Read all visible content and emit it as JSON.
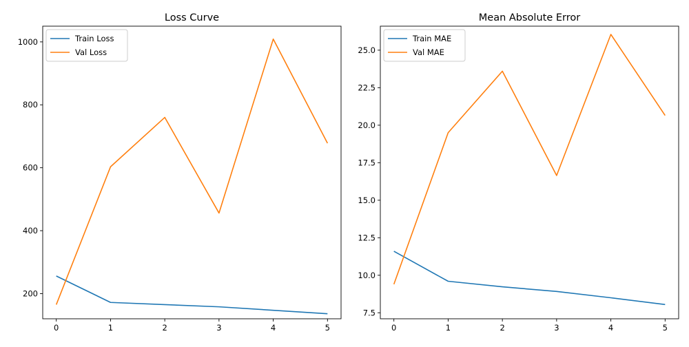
{
  "chart_data": [
    {
      "type": "line",
      "title": "Loss Curve",
      "xlabel": "",
      "ylabel": "",
      "x": [
        0,
        1,
        2,
        3,
        4,
        5
      ],
      "xlim": [
        -0.25,
        5.25
      ],
      "ylim": [
        120,
        1050
      ],
      "xticks": [
        0,
        1,
        2,
        3,
        4,
        5
      ],
      "yticks": [
        200,
        400,
        600,
        800,
        1000
      ],
      "grid": false,
      "legend": "top-left",
      "series": [
        {
          "name": "Train Loss",
          "color": "#1f77b4",
          "values": [
            256,
            172,
            165,
            158,
            147,
            136
          ]
        },
        {
          "name": "Val Loss",
          "color": "#ff7f0e",
          "values": [
            165,
            603,
            760,
            456,
            1009,
            678
          ]
        }
      ]
    },
    {
      "type": "line",
      "title": "Mean Absolute Error",
      "xlabel": "",
      "ylabel": "",
      "x": [
        0,
        1,
        2,
        3,
        4,
        5
      ],
      "xlim": [
        -0.25,
        5.25
      ],
      "ylim": [
        7.1,
        26.6
      ],
      "xticks": [
        0,
        1,
        2,
        3,
        4,
        5
      ],
      "yticks": [
        7.5,
        10.0,
        12.5,
        15.0,
        17.5,
        20.0,
        22.5,
        25.0
      ],
      "grid": false,
      "legend": "top-left",
      "series": [
        {
          "name": "Train MAE",
          "color": "#1f77b4",
          "values": [
            11.6,
            9.6,
            9.23,
            8.92,
            8.5,
            8.05
          ]
        },
        {
          "name": "Val MAE",
          "color": "#ff7f0e",
          "values": [
            9.4,
            19.5,
            23.6,
            16.65,
            26.05,
            20.65
          ]
        }
      ]
    }
  ]
}
